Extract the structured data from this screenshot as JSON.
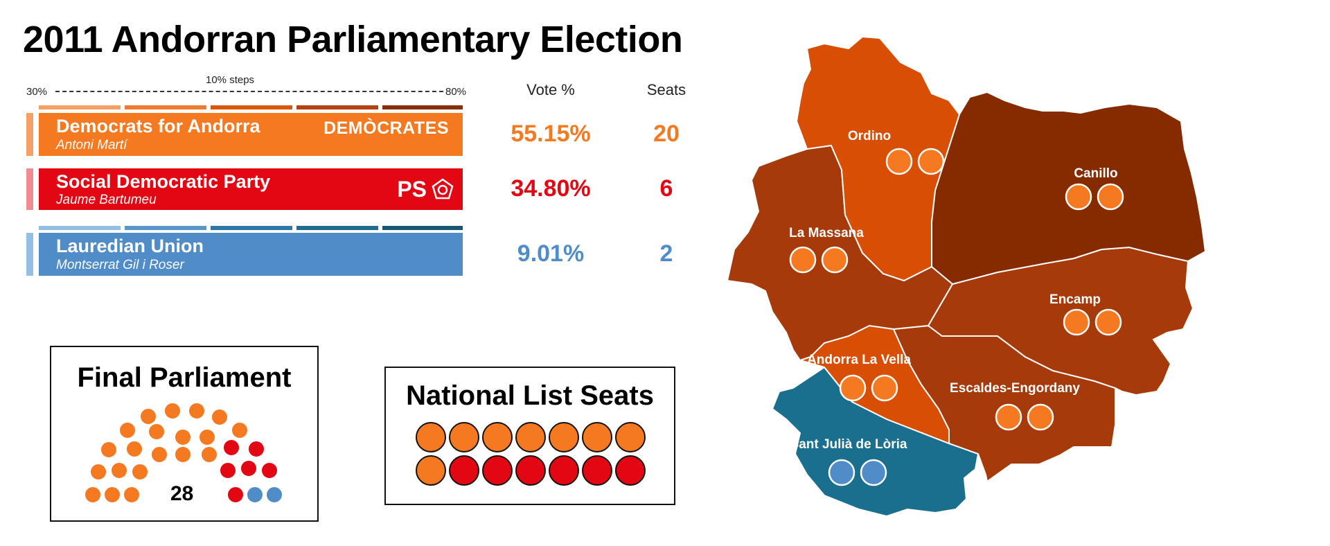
{
  "title": "2011 Andorran Parliamentary Election",
  "scale": {
    "min_label": "30%",
    "max_label": "80%",
    "step_label": "10% steps"
  },
  "columns": {
    "vote": "Vote %",
    "seats": "Seats"
  },
  "parties": [
    {
      "name": "Democrats for Andorra",
      "leader": "Antoni Martí",
      "logo": "DEMÒCRATES",
      "vote": "55.15%",
      "seats": "20",
      "color": "#f47920"
    },
    {
      "name": "Social Democratic Party",
      "leader": "Jaume Bartumeu",
      "logo": "PS",
      "vote": "34.80%",
      "seats": "6",
      "color": "#e30613"
    },
    {
      "name": "Lauredian Union",
      "leader": "Montserrat Gil i Roser",
      "logo": "",
      "vote": "9.01%",
      "seats": "2",
      "color": "#4f8cc8"
    }
  ],
  "colors": {
    "dfa": "#f47920",
    "ps": "#e30613",
    "ul": "#4f8cc8",
    "shade_dfa_1": "#d84e05",
    "shade_dfa_2": "#a63a0a",
    "shade_dfa_3": "#862a00",
    "shade_ul": "#1a6e8e",
    "scale_dfa": [
      "#f5a066",
      "#ed7b32",
      "#d9580f",
      "#b44211",
      "#86300a"
    ],
    "scale_ul": [
      "#92bfe3",
      "#5a97c9",
      "#2f78a6",
      "#1f6c8e",
      "#15586f"
    ]
  },
  "final_parliament": {
    "title": "Final Parliament",
    "total": "28",
    "dfa_seats": 20,
    "ps_seats": 6,
    "ul_seats": 2
  },
  "national_list": {
    "title": "National List Seats",
    "dfa_seats": 8,
    "ps_seats": 6
  },
  "parishes": [
    {
      "name": "Ordino",
      "winner": "dfa",
      "seats": 2,
      "shade": "shade_dfa_1"
    },
    {
      "name": "Canillo",
      "winner": "dfa",
      "seats": 2,
      "shade": "shade_dfa_3"
    },
    {
      "name": "La Massana",
      "winner": "dfa",
      "seats": 2,
      "shade": "shade_dfa_2"
    },
    {
      "name": "Encamp",
      "winner": "dfa",
      "seats": 2,
      "shade": "shade_dfa_2"
    },
    {
      "name": "Andorra La Vella",
      "winner": "dfa",
      "seats": 2,
      "shade": "shade_dfa_1"
    },
    {
      "name": "Escaldes-Engordany",
      "winner": "dfa",
      "seats": 2,
      "shade": "shade_dfa_2"
    },
    {
      "name": "Sant Julià de Lòria",
      "winner": "ul",
      "seats": 2,
      "shade": "shade_ul"
    }
  ]
}
